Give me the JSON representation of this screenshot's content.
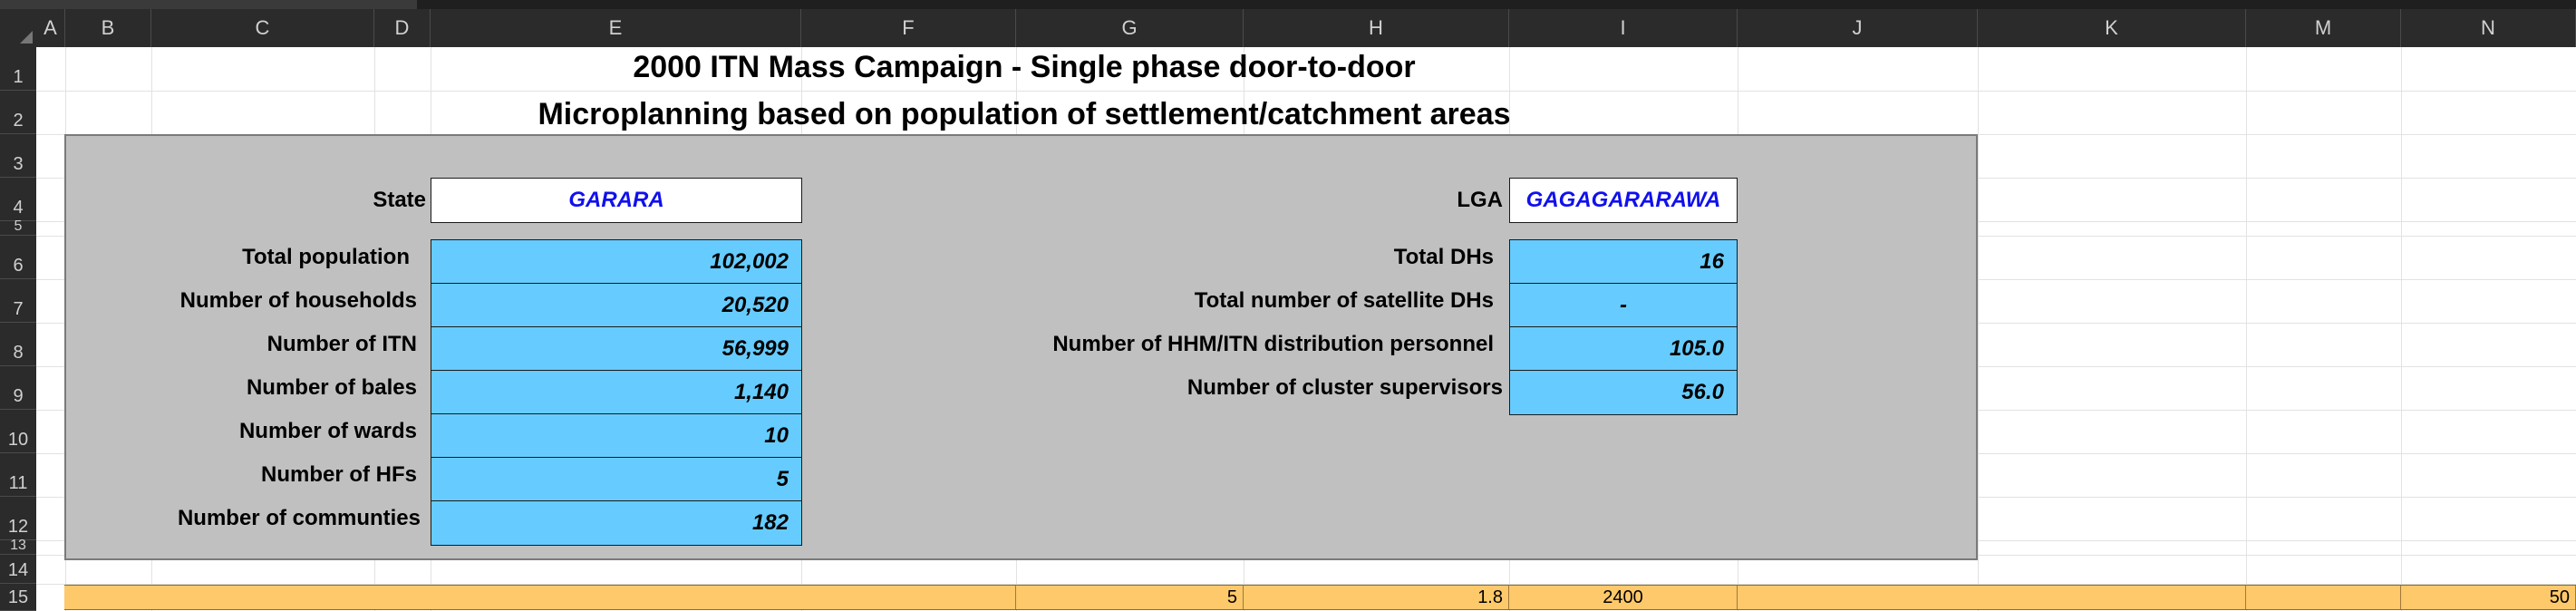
{
  "columns": [
    "A",
    "B",
    "C",
    "D",
    "E",
    "F",
    "G",
    "H",
    "I",
    "J",
    "K",
    "M",
    "N"
  ],
  "rows": [
    "1",
    "2",
    "3",
    "4",
    "5",
    "6",
    "7",
    "8",
    "9",
    "10",
    "11",
    "12",
    "13",
    "14",
    "15"
  ],
  "titles": {
    "line1": "2000 ITN Mass Campaign - Single phase door-to-door",
    "line2": "Microplanning based on population of settlement/catchment areas"
  },
  "left": {
    "state_label": "State",
    "state_value": "GARARA",
    "items": [
      {
        "label": "Total population",
        "value": "102,002"
      },
      {
        "label": "Number of households",
        "value": "20,520"
      },
      {
        "label": "Number of ITN",
        "value": "56,999"
      },
      {
        "label": "Number of bales",
        "value": "1,140"
      },
      {
        "label": "Number of wards",
        "value": "10"
      },
      {
        "label": "Number of HFs",
        "value": "5"
      },
      {
        "label": "Number of communties",
        "value": "182"
      }
    ]
  },
  "right": {
    "lga_label": "LGA",
    "lga_value": "GAGAGARARAWA",
    "items": [
      {
        "label": "Total DHs",
        "value": "16"
      },
      {
        "label": "Total number of satellite DHs",
        "value": "-"
      },
      {
        "label": "Number of HHM/ITN distribution personnel",
        "value": "105.0"
      },
      {
        "label": "Number of cluster supervisors",
        "value": "56.0"
      }
    ]
  },
  "row15": {
    "g": "5",
    "h": "1.8",
    "i": "2400",
    "n": "50"
  },
  "colors": {
    "value_fill": "#66ccff",
    "panel_fill": "#c0c0c0",
    "strip_fill": "#fdc96b",
    "dropdown_text": "#1010ee"
  }
}
